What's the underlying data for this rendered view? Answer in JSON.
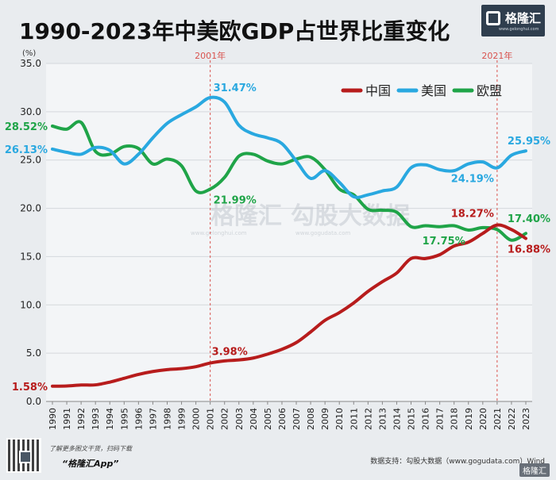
{
  "title": "1990-2023年中美欧GDP占世界比重变化",
  "logo": {
    "name": "格隆汇",
    "url": "www.gelonghui.com"
  },
  "watermark": {
    "brand": "格隆汇",
    "site": "www.gelonghui.com",
    "brand2": "勾股大数据",
    "site2": "www.gogudata.com"
  },
  "footer": {
    "note": "了解更多图文干货，扫码下载",
    "app": "“格隆汇App”",
    "source": "数据支持：勾股大数据（www.gogudata.com）Wind",
    "corner": "格隆汇"
  },
  "colors": {
    "china": "#b71c1c",
    "usa": "#29a8e0",
    "eu": "#1fa448",
    "marker": "#d9534f",
    "grid": "#d4d8dc"
  },
  "chart_data": {
    "type": "line",
    "title": "1990-2023年中美欧GDP占世界比重变化",
    "ylabel": "(%)",
    "ylim": [
      0,
      35
    ],
    "yticks": [
      "0.0",
      "5.0",
      "10.0",
      "15.0",
      "20.0",
      "25.0",
      "30.0",
      "35.0"
    ],
    "yticks_values": [
      0,
      5,
      10,
      15,
      20,
      25,
      30,
      35
    ],
    "categories": [
      "1990",
      "1991",
      "1992",
      "1993",
      "1994",
      "1995",
      "1996",
      "1997",
      "1998",
      "1999",
      "2000",
      "2001",
      "2002",
      "2003",
      "2004",
      "2005",
      "2006",
      "2007",
      "2008",
      "2009",
      "2010",
      "2011",
      "2012",
      "2013",
      "2014",
      "2015",
      "2016",
      "2017",
      "2018",
      "2019",
      "2020",
      "2021",
      "2022",
      "2023"
    ],
    "series": [
      {
        "name": "中国",
        "key": "china",
        "values": [
          1.58,
          1.6,
          1.7,
          1.72,
          2.0,
          2.4,
          2.8,
          3.1,
          3.3,
          3.4,
          3.6,
          3.98,
          4.2,
          4.3,
          4.5,
          4.9,
          5.4,
          6.1,
          7.2,
          8.4,
          9.2,
          10.2,
          11.4,
          12.4,
          13.3,
          14.8,
          14.8,
          15.2,
          16.1,
          16.5,
          17.4,
          18.27,
          17.8,
          16.88
        ]
      },
      {
        "name": "美国",
        "key": "usa",
        "values": [
          26.13,
          25.8,
          25.6,
          26.3,
          26.0,
          24.6,
          25.6,
          27.3,
          28.8,
          29.7,
          30.5,
          31.47,
          31.0,
          28.6,
          27.7,
          27.3,
          26.7,
          24.9,
          23.1,
          23.9,
          22.7,
          21.2,
          21.4,
          21.8,
          22.2,
          24.2,
          24.5,
          24.0,
          23.9,
          24.6,
          24.8,
          24.19,
          25.5,
          25.95
        ]
      },
      {
        "name": "欧盟",
        "key": "eu",
        "values": [
          28.52,
          28.2,
          28.9,
          25.9,
          25.6,
          26.4,
          26.2,
          24.6,
          25.1,
          24.4,
          21.8,
          21.99,
          23.2,
          25.4,
          25.6,
          24.9,
          24.6,
          25.1,
          25.3,
          24.0,
          22.0,
          21.4,
          19.9,
          19.8,
          19.6,
          18.1,
          18.2,
          18.1,
          18.2,
          17.75,
          18.0,
          17.8,
          16.7,
          17.4
        ]
      }
    ],
    "legend": {
      "position": "top-right",
      "items": [
        "中国",
        "美国",
        "欧盟"
      ]
    },
    "markers": [
      {
        "year": "2001",
        "label": "2001年"
      },
      {
        "year": "2021",
        "label": "2021年"
      }
    ],
    "data_labels": [
      {
        "series": "china",
        "year": "1990",
        "text": "1.58%",
        "place": "left"
      },
      {
        "series": "china",
        "year": "2001",
        "text": "3.98%",
        "place": "above-right"
      },
      {
        "series": "china",
        "year": "2021",
        "text": "18.27%",
        "place": "above-left"
      },
      {
        "series": "china",
        "year": "2023",
        "text": "16.88%",
        "place": "below"
      },
      {
        "series": "usa",
        "year": "1990",
        "text": "26.13%",
        "place": "left"
      },
      {
        "series": "usa",
        "year": "2001",
        "text": "31.47%",
        "place": "right"
      },
      {
        "series": "usa",
        "year": "2021",
        "text": "24.19%",
        "place": "below-left"
      },
      {
        "series": "usa",
        "year": "2023",
        "text": "25.95%",
        "place": "above"
      },
      {
        "series": "eu",
        "year": "1990",
        "text": "28.52%",
        "place": "left"
      },
      {
        "series": "eu",
        "year": "2001",
        "text": "21.99%",
        "place": "below-right"
      },
      {
        "series": "eu",
        "year": "2019",
        "text": "17.75%",
        "place": "below-left"
      },
      {
        "series": "eu",
        "year": "2023",
        "text": "17.40%",
        "place": "above"
      }
    ]
  }
}
